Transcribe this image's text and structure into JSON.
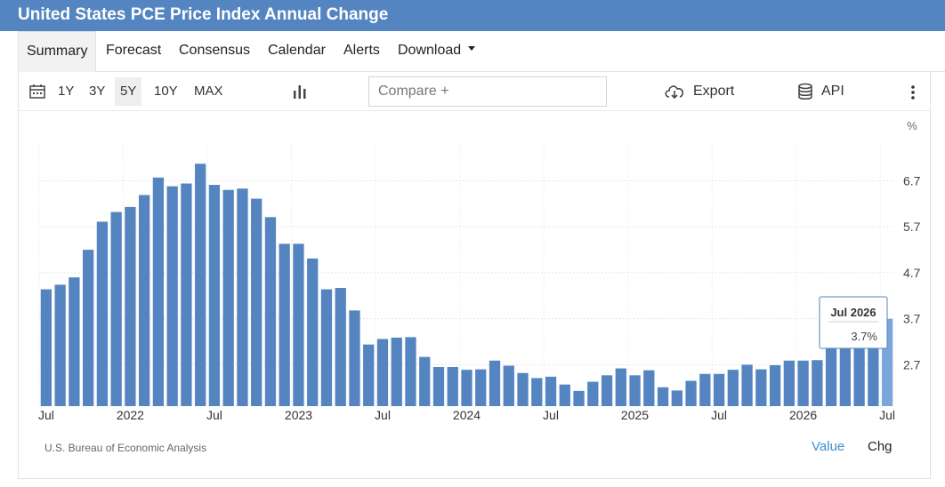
{
  "header": {
    "title": "United States PCE Price Index Annual Change"
  },
  "tabs": [
    {
      "label": "Summary"
    },
    {
      "label": "Forecast"
    },
    {
      "label": "Consensus"
    },
    {
      "label": "Calendar"
    },
    {
      "label": "Alerts"
    },
    {
      "label": "Download"
    }
  ],
  "toolbar": {
    "ranges": [
      "1Y",
      "3Y",
      "5Y",
      "10Y",
      "MAX"
    ],
    "active_range": "5Y",
    "compare_placeholder": "Compare +",
    "export_label": "Export",
    "api_label": "API"
  },
  "footer": {
    "source": "U.S. Bureau of Economic Analysis",
    "value_label": "Value",
    "chg_label": "Chg"
  },
  "tooltip": {
    "date": "Jul 2026",
    "value": "3.7%"
  },
  "colors": {
    "bar": "#5585c0",
    "bar_highlight": "#7aa6dc",
    "header": "#5585c0",
    "link": "#3c8dd4"
  },
  "chart_data": {
    "type": "bar",
    "unit": "%",
    "y_ticks": [
      2.7,
      3.7,
      4.7,
      5.7,
      6.7
    ],
    "ylim": [
      1.8,
      7.5
    ],
    "grid": true,
    "x_tick_labels": [
      "Jul",
      "2022",
      "Jul",
      "2023",
      "Jul",
      "2024",
      "Jul",
      "2025",
      "Jul",
      "2026",
      "Jul"
    ],
    "start": "2021-07",
    "end": "2026-07",
    "values": [
      4.34,
      4.44,
      4.6,
      5.2,
      5.81,
      6.02,
      6.13,
      6.39,
      6.77,
      6.58,
      6.64,
      7.07,
      6.61,
      6.5,
      6.53,
      6.31,
      5.91,
      5.33,
      5.33,
      5.01,
      4.34,
      4.37,
      3.88,
      3.14,
      3.26,
      3.29,
      3.3,
      2.87,
      2.65,
      2.65,
      2.59,
      2.6,
      2.79,
      2.68,
      2.52,
      2.41,
      2.44,
      2.27,
      2.13,
      2.33,
      2.47,
      2.62,
      2.47,
      2.58,
      2.21,
      2.14,
      2.35,
      2.5,
      2.5,
      2.59,
      2.7,
      2.6,
      2.69,
      2.79,
      2.79,
      2.8,
      3.2,
      3.3,
      3.4,
      3.6,
      3.7
    ],
    "highlight_index": 60
  }
}
